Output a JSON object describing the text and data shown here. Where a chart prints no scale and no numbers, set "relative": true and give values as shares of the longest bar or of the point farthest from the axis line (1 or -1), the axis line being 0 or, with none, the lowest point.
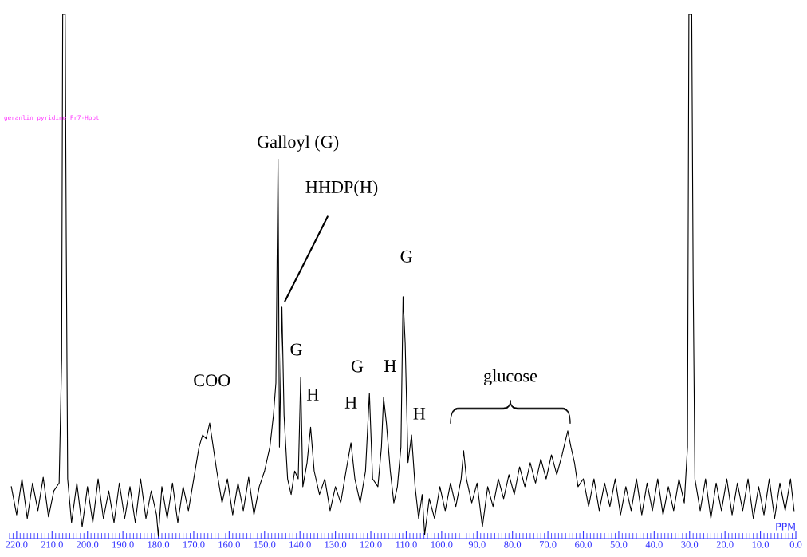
{
  "chart_data": {
    "type": "line",
    "relative": true,
    "xlabel": "PPM",
    "xlim": [
      222,
      0
    ],
    "xticks": [
      {
        "value": 220,
        "label": "220.0"
      },
      {
        "value": 210,
        "label": "210.0"
      },
      {
        "value": 200,
        "label": "200.0"
      },
      {
        "value": 190,
        "label": "190.0"
      },
      {
        "value": 180,
        "label": "180.0"
      },
      {
        "value": 170,
        "label": "170.0"
      },
      {
        "value": 160,
        "label": "160.0"
      },
      {
        "value": 150,
        "label": "150.0"
      },
      {
        "value": 140,
        "label": "140.0"
      },
      {
        "value": 130,
        "label": "130.0"
      },
      {
        "value": 120,
        "label": "120.0"
      },
      {
        "value": 110,
        "label": "110.0"
      },
      {
        "value": 100,
        "label": "100.0"
      },
      {
        "value": 90,
        "label": "90.0"
      },
      {
        "value": 80,
        "label": "80.0"
      },
      {
        "value": 70,
        "label": "70.0"
      },
      {
        "value": 60,
        "label": "60.0"
      },
      {
        "value": 50,
        "label": "50.0"
      },
      {
        "value": 40,
        "label": "40.0"
      },
      {
        "value": 30,
        "label": "30.0"
      },
      {
        "value": 20,
        "label": "20.0"
      },
      {
        "value": 10,
        "label": "10.0"
      },
      {
        "value": 0,
        "label": "0.0"
      }
    ],
    "tick_labels": "x",
    "grid": false,
    "legend": false,
    "marker": "none",
    "line_style": "solid",
    "series": [
      {
        "color": "#000000",
        "x": [
          221.5,
          220,
          218.5,
          217,
          215.5,
          214,
          212.5,
          211,
          209.5,
          208,
          207.3,
          207.0,
          206.3,
          206.0,
          205.6,
          204.5,
          203,
          201.5,
          200,
          198.5,
          197,
          195.5,
          194,
          192.5,
          191,
          189.5,
          188,
          186.5,
          185,
          183.5,
          182,
          180.5,
          180,
          179,
          177.5,
          176,
          174.5,
          173,
          171.5,
          170,
          168.5,
          167.5,
          166.5,
          165.5,
          164.5,
          163.5,
          162,
          160.5,
          159,
          157.5,
          156,
          154.5,
          153,
          151.5,
          150,
          148.5,
          147.5,
          146.8,
          146.2,
          145.8,
          145.1,
          144.5,
          143.5,
          142.5,
          141.5,
          140.5,
          139.8,
          139.2,
          138,
          137,
          136,
          134.5,
          133,
          131.5,
          130,
          128.5,
          127,
          125.6,
          124.5,
          123,
          121.5,
          120.4,
          119.5,
          118,
          117,
          116.4,
          115.6,
          114.5,
          113.5,
          112.5,
          111.5,
          110.9,
          110.3,
          109.5,
          108.5,
          107.5,
          106.5,
          105.5,
          104.8,
          103.5,
          102,
          100.5,
          99,
          97.5,
          96,
          94.5,
          93.8,
          93,
          91.5,
          90,
          88.5,
          87,
          85.5,
          84,
          82.5,
          81,
          79.5,
          78,
          76.5,
          75,
          73.5,
          72,
          70.5,
          69,
          67.5,
          66,
          64.4,
          63.5,
          62.5,
          61.5,
          60,
          58.5,
          57,
          55.5,
          54,
          52.5,
          51,
          49.5,
          48,
          46.5,
          45,
          43.5,
          42,
          40.5,
          39,
          37.5,
          36,
          34.5,
          33,
          31.5,
          30.6,
          30.2,
          29.4,
          29.0,
          28.5,
          27,
          25.5,
          24,
          22.5,
          21,
          19.5,
          18,
          16.5,
          15,
          13.5,
          12,
          10.5,
          9,
          7.5,
          6,
          4.5,
          3,
          1.5,
          0.5
        ],
        "values": [
          0.095,
          0.041,
          0.11,
          0.034,
          0.102,
          0.049,
          0.113,
          0.037,
          0.087,
          0.102,
          0.339,
          1,
          1,
          0.569,
          0.11,
          0.026,
          0.102,
          0.018,
          0.095,
          0.026,
          0.11,
          0.034,
          0.087,
          0.026,
          0.102,
          0.034,
          0.095,
          0.026,
          0.11,
          0.034,
          0.087,
          0.041,
          0,
          0.095,
          0.034,
          0.102,
          0.026,
          0.095,
          0.049,
          0.11,
          0.171,
          0.194,
          0.187,
          0.217,
          0.171,
          0.125,
          0.064,
          0.11,
          0.041,
          0.102,
          0.049,
          0.113,
          0.041,
          0.095,
          0.125,
          0.171,
          0.232,
          0.294,
          0.723,
          0.171,
          0.439,
          0.232,
          0.11,
          0.08,
          0.125,
          0.11,
          0.304,
          0.095,
          0.141,
          0.209,
          0.125,
          0.08,
          0.11,
          0.049,
          0.095,
          0.064,
          0.125,
          0.179,
          0.11,
          0.064,
          0.125,
          0.274,
          0.11,
          0.095,
          0.171,
          0.266,
          0.217,
          0.125,
          0.064,
          0.095,
          0.171,
          0.459,
          0.37,
          0.141,
          0.194,
          0.095,
          0.034,
          0.08,
          0.003,
          0.072,
          0.034,
          0.095,
          0.049,
          0.102,
          0.057,
          0.11,
          0.164,
          0.11,
          0.064,
          0.102,
          0.018,
          0.095,
          0.057,
          0.11,
          0.072,
          0.118,
          0.08,
          0.133,
          0.095,
          0.141,
          0.102,
          0.148,
          0.11,
          0.156,
          0.118,
          0.156,
          0.202,
          0.171,
          0.141,
          0.095,
          0.11,
          0.057,
          0.11,
          0.049,
          0.102,
          0.057,
          0.11,
          0.041,
          0.095,
          0.049,
          0.11,
          0.041,
          0.102,
          0.049,
          0.11,
          0.041,
          0.095,
          0.049,
          0.11,
          0.064,
          0.171,
          1,
          1,
          0.492,
          0.11,
          0.049,
          0.11,
          0.034,
          0.102,
          0.049,
          0.11,
          0.041,
          0.102,
          0.049,
          0.11,
          0.034,
          0.095,
          0.041,
          0.11,
          0.034,
          0.102,
          0.049,
          0.11,
          0.049
        ]
      }
    ],
    "annotations": [
      {
        "text": "Galloyl (G)",
        "x": 146.2,
        "y": 0.723
      },
      {
        "text": "HHDP(H)",
        "x": 145.1,
        "y": 0.439
      },
      {
        "text": "G",
        "x": 139.8,
        "y": 0.304
      },
      {
        "text": "H",
        "x": 137,
        "y": 0.209
      },
      {
        "text": "COO",
        "x": 165.5,
        "y": 0.217
      },
      {
        "text": "H",
        "x": 125.6,
        "y": 0.179
      },
      {
        "text": "G",
        "x": 120.4,
        "y": 0.274
      },
      {
        "text": "H",
        "x": 116.4,
        "y": 0.266
      },
      {
        "text": "G",
        "x": 110.9,
        "y": 0.459
      },
      {
        "text": "H",
        "x": 108.5,
        "y": 0.194
      },
      "glucose",
      "geranlin pyridine Fr7-Hppt"
    ]
  }
}
